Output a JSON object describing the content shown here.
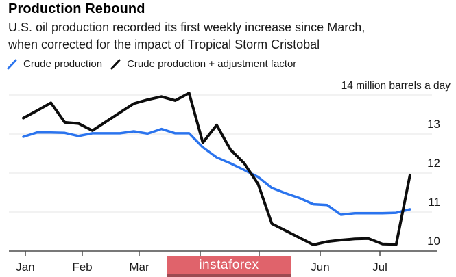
{
  "header": {
    "title": "Production Rebound",
    "subtitle_line1": "U.S. oil production recorded its first weekly increase since March,",
    "subtitle_line2": "when corrected for the impact of Tropical Storm Cristobal"
  },
  "legend": [
    {
      "label": "Crude production",
      "color": "#2b74ee"
    },
    {
      "label": "Crude production + adjustment factor",
      "color": "#0d0d0d"
    }
  ],
  "watermark": {
    "text": "instaforex",
    "bg_color": "#e0636b",
    "edge_color": "#9c4a52",
    "text_color": "#ffffff"
  },
  "colors": {
    "gridline": "#e5e5e5",
    "axis": "#4c4c4c",
    "axis_text": "#1a1a1a",
    "blue_line": "#2b74ee",
    "black_line": "#0d0d0d"
  },
  "chart_data": {
    "type": "line",
    "title": "Production Rebound",
    "unit_top_label": "14 million barrels a day",
    "x_axis": {
      "tick_labels": [
        "Jan",
        "Feb",
        "Mar",
        "",
        "",
        "Jun",
        "Jul"
      ],
      "tick_week_index": [
        0.15,
        4.27,
        8.39,
        12.81,
        17.08,
        21.5,
        25.82
      ],
      "note_hidden_labels": ""
    },
    "y_axis": {
      "tick_values": [
        14,
        13,
        12,
        11,
        10
      ],
      "tick_labels": [
        "14 million barrels a day",
        "13",
        "12",
        "11",
        "10"
      ],
      "range": [
        10,
        14.3
      ],
      "grid": true
    },
    "x_points": 29,
    "series": [
      {
        "name": "Crude production",
        "color": "#2b74ee",
        "values": [
          12.93,
          13.04,
          13.04,
          13.03,
          12.95,
          13.02,
          13.02,
          13.02,
          13.07,
          13.01,
          13.13,
          13.02,
          13.02,
          12.66,
          12.4,
          12.25,
          12.08,
          11.9,
          11.62,
          11.48,
          11.36,
          11.2,
          11.18,
          10.93,
          10.97,
          10.97,
          10.97,
          10.98,
          11.07
        ]
      },
      {
        "name": "Crude production + adjustment factor",
        "color": "#0d0d0d",
        "values": [
          13.41,
          13.6,
          13.8,
          13.3,
          13.27,
          13.09,
          13.32,
          13.55,
          13.78,
          13.88,
          13.96,
          13.86,
          14.05,
          12.78,
          13.23,
          12.6,
          12.25,
          11.72,
          10.7,
          10.52,
          10.34,
          10.16,
          10.24,
          10.28,
          10.31,
          10.32,
          10.18,
          10.17,
          11.95
        ]
      }
    ],
    "legend_position": "top"
  }
}
